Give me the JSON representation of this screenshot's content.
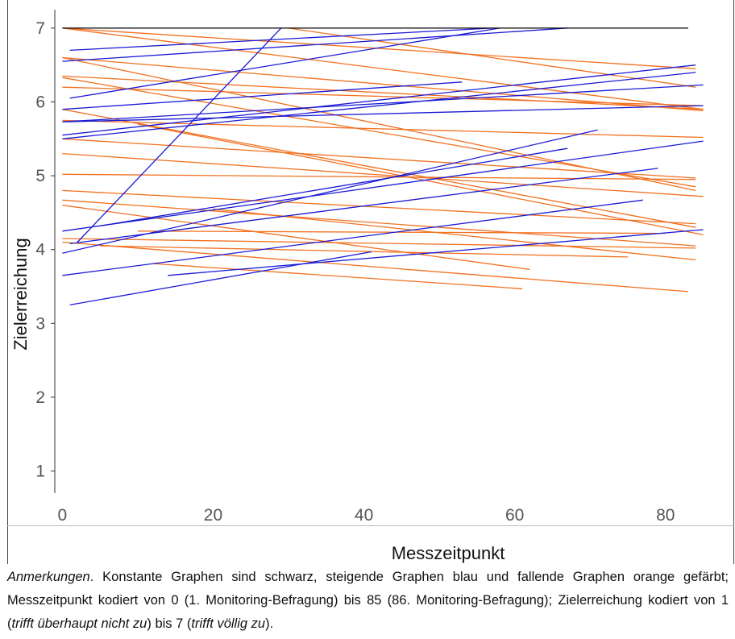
{
  "chart_data": {
    "type": "line",
    "title": "",
    "xlabel": "Messzeitpunkt",
    "ylabel": "Zielerreichung",
    "xlim": [
      -1,
      89
    ],
    "ylim": [
      0.7,
      7.25
    ],
    "x_ticks": [
      0,
      20,
      40,
      60,
      80
    ],
    "y_ticks": [
      1,
      2,
      3,
      4,
      5,
      6,
      7
    ],
    "grid": false,
    "legend": "none",
    "colors": {
      "constant": "#000000",
      "rising": "#1a1ad6",
      "falling": "#f2701f"
    },
    "series": [
      {
        "kind": "constant",
        "x": [
          0,
          83
        ],
        "y": [
          7.0,
          7.0
        ]
      },
      {
        "kind": "rising",
        "x": [
          1,
          57
        ],
        "y": [
          6.7,
          7.0
        ]
      },
      {
        "kind": "rising",
        "x": [
          0,
          67
        ],
        "y": [
          6.55,
          7.0
        ]
      },
      {
        "kind": "rising",
        "x": [
          1,
          58
        ],
        "y": [
          6.05,
          7.0
        ]
      },
      {
        "kind": "rising",
        "x": [
          2,
          29
        ],
        "y": [
          4.1,
          7.0
        ]
      },
      {
        "kind": "rising",
        "x": [
          0,
          84
        ],
        "y": [
          5.55,
          6.5
        ]
      },
      {
        "kind": "rising",
        "x": [
          0,
          53
        ],
        "y": [
          5.9,
          6.27
        ]
      },
      {
        "kind": "rising",
        "x": [
          0,
          84
        ],
        "y": [
          5.5,
          6.4
        ]
      },
      {
        "kind": "rising",
        "x": [
          0,
          85
        ],
        "y": [
          5.73,
          6.23
        ]
      },
      {
        "kind": "rising",
        "x": [
          0,
          85
        ],
        "y": [
          5.73,
          5.95
        ]
      },
      {
        "kind": "rising",
        "x": [
          0,
          71
        ],
        "y": [
          3.95,
          5.62
        ]
      },
      {
        "kind": "rising",
        "x": [
          5,
          67
        ],
        "y": [
          4.32,
          5.37
        ]
      },
      {
        "kind": "rising",
        "x": [
          0,
          85
        ],
        "y": [
          4.25,
          5.47
        ]
      },
      {
        "kind": "rising",
        "x": [
          1,
          79
        ],
        "y": [
          4.08,
          5.1
        ]
      },
      {
        "kind": "rising",
        "x": [
          0,
          77
        ],
        "y": [
          3.65,
          4.67
        ]
      },
      {
        "kind": "rising",
        "x": [
          14,
          85
        ],
        "y": [
          3.65,
          4.27
        ]
      },
      {
        "kind": "rising",
        "x": [
          1,
          41
        ],
        "y": [
          3.25,
          3.97
        ]
      },
      {
        "kind": "falling",
        "x": [
          0,
          84
        ],
        "y": [
          7.0,
          6.45
        ]
      },
      {
        "kind": "falling",
        "x": [
          30,
          84
        ],
        "y": [
          7.0,
          6.2
        ]
      },
      {
        "kind": "falling",
        "x": [
          0,
          85
        ],
        "y": [
          7.0,
          5.9
        ]
      },
      {
        "kind": "falling",
        "x": [
          0,
          85
        ],
        "y": [
          6.6,
          5.88
        ]
      },
      {
        "kind": "falling",
        "x": [
          0,
          85
        ],
        "y": [
          6.35,
          5.9
        ]
      },
      {
        "kind": "falling",
        "x": [
          0,
          85
        ],
        "y": [
          6.2,
          5.95
        ]
      },
      {
        "kind": "falling",
        "x": [
          0,
          84
        ],
        "y": [
          6.33,
          4.85
        ]
      },
      {
        "kind": "falling",
        "x": [
          0,
          84
        ],
        "y": [
          6.6,
          4.8
        ]
      },
      {
        "kind": "falling",
        "x": [
          0,
          84
        ],
        "y": [
          5.9,
          4.3
        ]
      },
      {
        "kind": "falling",
        "x": [
          0,
          85
        ],
        "y": [
          5.75,
          5.52
        ]
      },
      {
        "kind": "falling",
        "x": [
          10,
          85
        ],
        "y": [
          5.7,
          4.2
        ]
      },
      {
        "kind": "falling",
        "x": [
          0,
          84
        ],
        "y": [
          5.5,
          4.97
        ]
      },
      {
        "kind": "falling",
        "x": [
          0,
          85
        ],
        "y": [
          5.3,
          4.72
        ]
      },
      {
        "kind": "falling",
        "x": [
          0,
          84
        ],
        "y": [
          5.02,
          4.95
        ]
      },
      {
        "kind": "falling",
        "x": [
          0,
          84
        ],
        "y": [
          4.8,
          4.35
        ]
      },
      {
        "kind": "falling",
        "x": [
          0,
          84
        ],
        "y": [
          4.67,
          4.05
        ]
      },
      {
        "kind": "falling",
        "x": [
          0,
          62
        ],
        "y": [
          4.6,
          3.73
        ]
      },
      {
        "kind": "falling",
        "x": [
          0,
          84
        ],
        "y": [
          4.15,
          4.02
        ]
      },
      {
        "kind": "falling",
        "x": [
          5,
          75
        ],
        "y": [
          4.05,
          3.9
        ]
      },
      {
        "kind": "falling",
        "x": [
          20,
          84
        ],
        "y": [
          4.55,
          3.86
        ]
      },
      {
        "kind": "falling",
        "x": [
          12,
          61
        ],
        "y": [
          3.81,
          3.47
        ]
      },
      {
        "kind": "falling",
        "x": [
          10,
          80
        ],
        "y": [
          4.25,
          4.22
        ]
      },
      {
        "kind": "falling",
        "x": [
          0,
          83
        ],
        "y": [
          4.1,
          3.43
        ]
      }
    ]
  },
  "note": {
    "label": "Anmerkungen",
    "text1": ". Konstante Graphen sind schwarz, steigende Graphen blau und fallende Graphen orange gefärbt; Messzeitpunkt kodiert von 0 (1. Monitoring-Befragung) bis 85 (86. Monitoring-Befragung); Zielerreichung kodiert von 1 (",
    "low_anchor": "trifft überhaupt nicht zu",
    "text2": ") bis 7 (",
    "high_anchor": "trifft völlig zu",
    "text3": ")."
  }
}
